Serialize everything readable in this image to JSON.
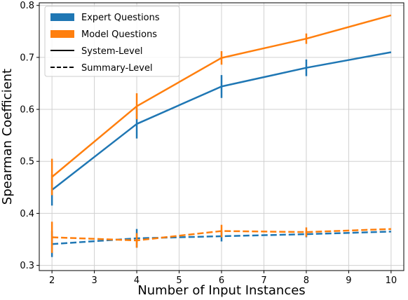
{
  "chart_data": {
    "type": "line",
    "xlabel": "Number of Input Instances",
    "ylabel": "Spearman Coefficient",
    "xlim": [
      1.7,
      10.3
    ],
    "ylim": [
      0.29,
      0.805
    ],
    "xticks": [
      2,
      3,
      4,
      5,
      6,
      7,
      8,
      9,
      10
    ],
    "yticks": [
      0.3,
      0.4,
      0.5,
      0.6,
      0.7,
      0.8
    ],
    "ytick_labels": [
      "0.3",
      "0.4",
      "0.5",
      "0.6",
      "0.7",
      "0.8"
    ],
    "grid": true,
    "legend_position": "top-left",
    "legend": {
      "color_entries": [
        {
          "label": "Expert Questions",
          "color": "#1f77b4"
        },
        {
          "label": "Model Questions",
          "color": "#ff7f0e"
        }
      ],
      "style_entries": [
        {
          "label": "System-Level",
          "dash": "solid"
        },
        {
          "label": "Summary-Level",
          "dash": "dashed"
        }
      ]
    },
    "series": [
      {
        "group": "Expert Questions",
        "level": "System-Level",
        "color": "#1f77b4",
        "dash": "solid",
        "x": [
          2,
          4,
          6,
          8,
          10
        ],
        "y": [
          0.445,
          0.572,
          0.644,
          0.68,
          0.71
        ],
        "err": [
          0.03,
          0.028,
          0.022,
          0.016,
          0
        ]
      },
      {
        "group": "Model Questions",
        "level": "System-Level",
        "color": "#ff7f0e",
        "dash": "solid",
        "x": [
          2,
          4,
          6,
          8,
          10
        ],
        "y": [
          0.47,
          0.606,
          0.699,
          0.736,
          0.781
        ],
        "err": [
          0.035,
          0.025,
          0.013,
          0.01,
          0
        ]
      },
      {
        "group": "Expert Questions",
        "level": "Summary-Level",
        "color": "#1f77b4",
        "dash": "dashed",
        "x": [
          2,
          4,
          6,
          8,
          10
        ],
        "y": [
          0.341,
          0.352,
          0.356,
          0.36,
          0.365
        ],
        "err": [
          0.025,
          0.018,
          0.01,
          0.006,
          0
        ]
      },
      {
        "group": "Model Questions",
        "level": "Summary-Level",
        "color": "#ff7f0e",
        "dash": "dashed",
        "x": [
          2,
          4,
          6,
          8,
          10
        ],
        "y": [
          0.354,
          0.348,
          0.366,
          0.364,
          0.37
        ],
        "err": [
          0.03,
          0.014,
          0.012,
          0.009,
          0
        ]
      }
    ]
  }
}
